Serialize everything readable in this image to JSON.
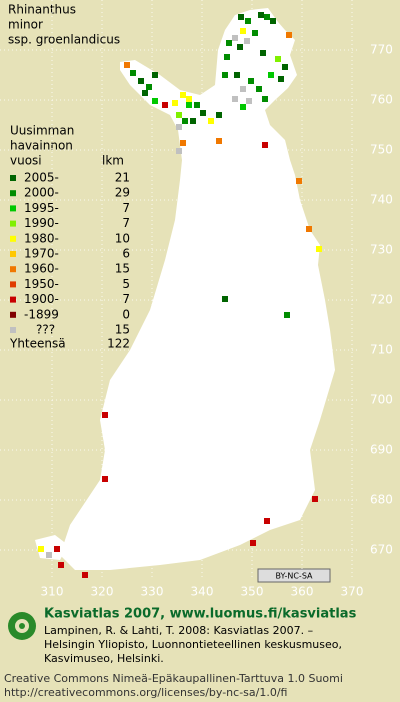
{
  "title": [
    "Rhinanthus",
    "minor",
    "ssp. groenlandicus"
  ],
  "legend": {
    "heading": [
      "Uusimman",
      "havainnon"
    ],
    "col_year": "vuosi",
    "col_count": "lkm",
    "rows": [
      {
        "label": "2005-",
        "count": 21,
        "color": "#006400"
      },
      {
        "label": "2000-",
        "count": 29,
        "color": "#008c00"
      },
      {
        "label": "1995-",
        "count": 7,
        "color": "#00c800"
      },
      {
        "label": "1990-",
        "count": 7,
        "color": "#80f000"
      },
      {
        "label": "1980-",
        "count": 10,
        "color": "#ffff00"
      },
      {
        "label": "1970-",
        "count": 6,
        "color": "#ffc800"
      },
      {
        "label": "1960-",
        "count": 15,
        "color": "#f07800"
      },
      {
        "label": "1950-",
        "count": 5,
        "color": "#e03c00"
      },
      {
        "label": "1900-",
        "count": 7,
        "color": "#c80000"
      },
      {
        "label": "-1899",
        "count": 0,
        "color": "#800000"
      },
      {
        "label": "???",
        "count": 15,
        "color": "#c0c0c0"
      }
    ],
    "total_label": "Yhteensä",
    "total": 122
  },
  "grid": {
    "northing": [
      770,
      760,
      750,
      740,
      730,
      720,
      710,
      700,
      690,
      680,
      670
    ],
    "easting": [
      310,
      320,
      330,
      340,
      350,
      360,
      370
    ]
  },
  "license_badge": "BY-NC-SA",
  "footer": {
    "site": "Kasviatlas 2007, www.luomus.fi/kasviatlas",
    "citation": [
      "Lampinen, R. & Lahti, T. 2008: Kasviatlas 2007. –",
      "Helsingin Yliopisto, Luonnontieteellinen keskusmuseo,",
      "Kasvimuseo, Helsinki."
    ],
    "license": [
      "Creative Commons Nimeä-Epäkaupallinen-Tarttuva 1.0 Suomi",
      "http://creativecommons.org/licenses/by-nc-sa/1.0/fi"
    ]
  }
}
